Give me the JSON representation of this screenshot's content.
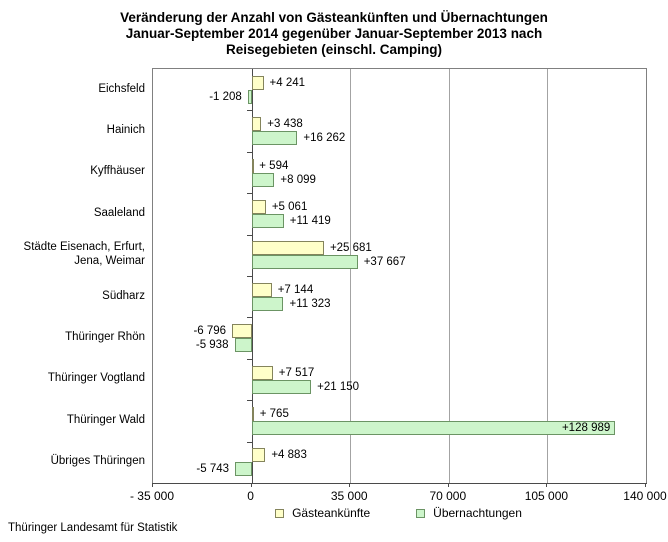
{
  "title": {
    "line1": "Veränderung der Anzahl von Gästeankünften und Übernachtungen",
    "line2": "Januar-September 2014 gegenüber Januar-September 2013 nach",
    "line3": "Reisegebieten (einschl. Camping)"
  },
  "footer": {
    "source": "Thüringer Landesamt für Statistik"
  },
  "colors": {
    "plot_border": "#808080",
    "gridline": "#a3a3a3",
    "axis": "#4a4a4a"
  },
  "chart_data": {
    "type": "bar",
    "orientation": "horizontal",
    "title": "Veränderung der Anzahl von Gästeankünften und Übernachtungen Januar-September 2014 gegenüber Januar-September 2013 nach Reisegebieten (einschl. Camping)",
    "categories": [
      "Eichsfeld",
      "Hainich",
      "Kyffhäuser",
      "Saaleland",
      "Städte Eisenach, Erfurt,\nJena, Weimar",
      "Südharz",
      "Thüringer Rhön",
      "Thüringer Vogtland",
      "Thüringer Wald",
      "Übriges Thüringen"
    ],
    "series": [
      {
        "name": "Gästeankünfte",
        "fill": "#FFFFC9",
        "border": "#84845c",
        "values": [
          4241,
          3438,
          594,
          5061,
          25681,
          7144,
          -6796,
          7517,
          765,
          4883
        ],
        "labels": [
          "+4 241",
          "+3 438",
          "+ 594",
          "+5 061",
          "+25 681",
          "+7 144",
          "-6 796",
          "+7 517",
          "+ 765",
          "+4 883"
        ]
      },
      {
        "name": "Übernachtungen",
        "fill": "#CDF5CB",
        "border": "#6b9464",
        "values": [
          -1208,
          16262,
          8099,
          11419,
          37667,
          11323,
          -5938,
          21150,
          128989,
          -5743
        ],
        "labels": [
          "-1 208",
          "+16 262",
          "+8 099",
          "+11 419",
          "+37 667",
          "+11 323",
          "-5 938",
          "+21 150",
          "+128 989",
          "-5 743"
        ]
      }
    ],
    "xlim": [
      -35000,
      140000
    ],
    "x_ticks": [
      {
        "v": -35000,
        "label": "- 35 000"
      },
      {
        "v": 0,
        "label": "0"
      },
      {
        "v": 35000,
        "label": "35 000"
      },
      {
        "v": 70000,
        "label": "70 000"
      },
      {
        "v": 105000,
        "label": "105 000"
      },
      {
        "v": 140000,
        "label": "140 000"
      }
    ],
    "grid_values": [
      35000,
      70000,
      105000
    ],
    "legend_position": "bottom",
    "grid": true
  }
}
